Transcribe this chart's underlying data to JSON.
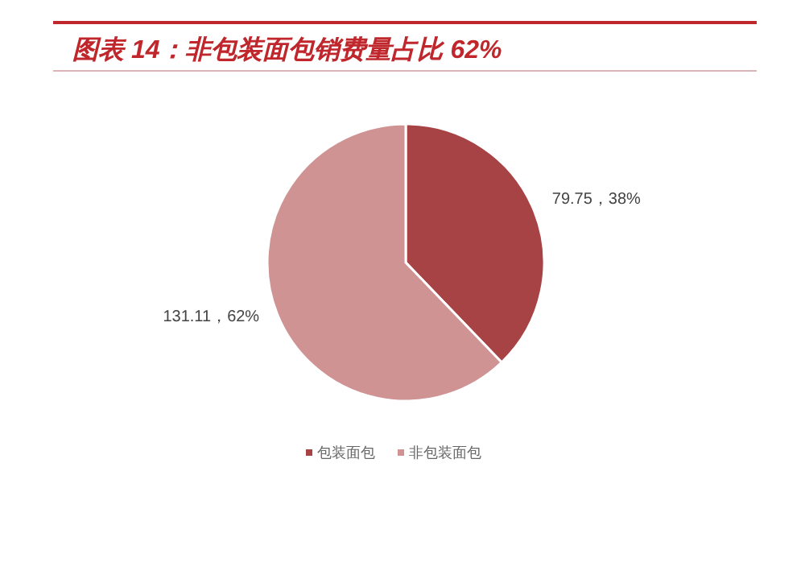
{
  "chart_data": {
    "type": "pie",
    "title": "图表 14：非包装面包销费量占比 62%",
    "categories": [
      "包装面包",
      "非包装面包"
    ],
    "values": [
      79.75,
      131.11
    ],
    "colors": [
      "#a84345",
      "#d09394"
    ],
    "value_labels": [
      "79.75，38%",
      "131.11，62%"
    ],
    "legend": "bottom"
  }
}
